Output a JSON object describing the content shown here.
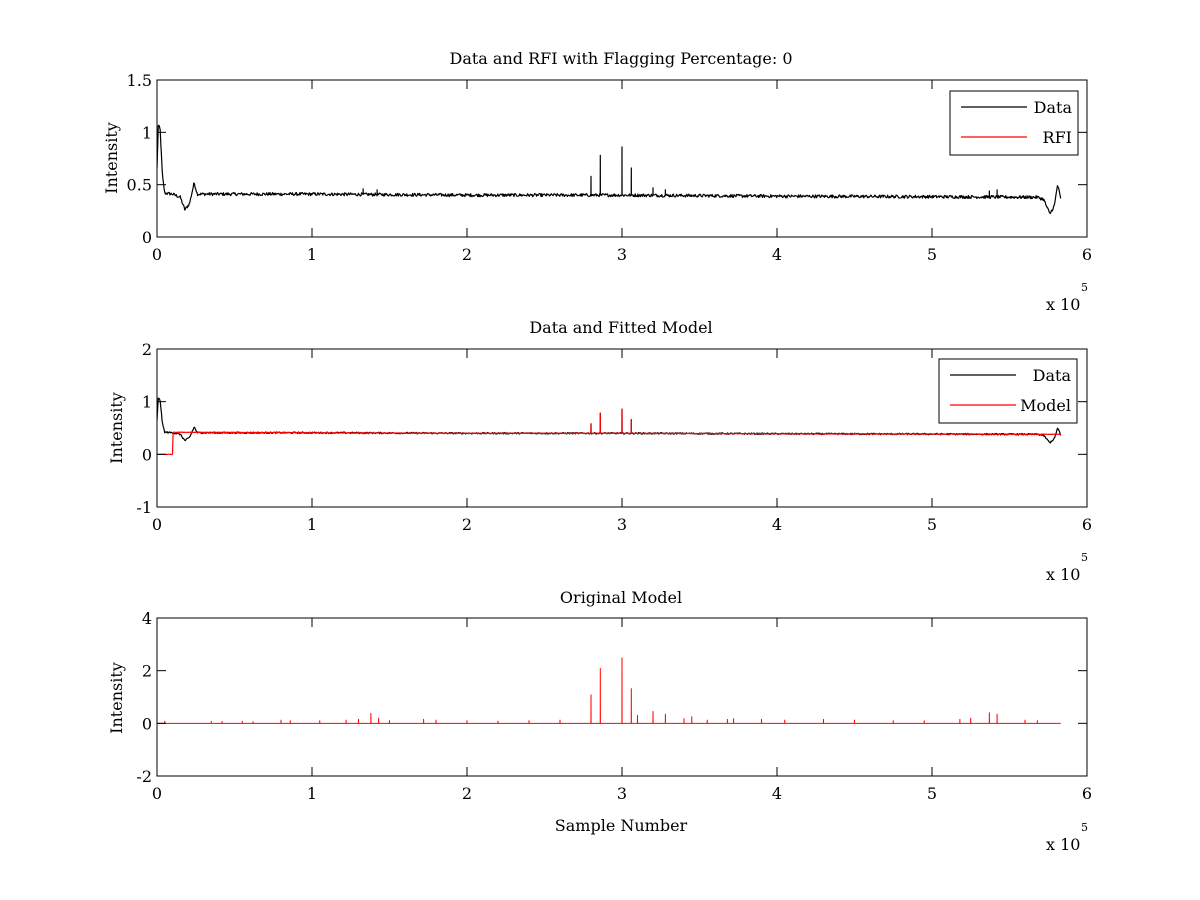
{
  "chart_data": [
    {
      "type": "line",
      "title": "Data and RFI with Flagging Percentage: 0",
      "xlabel": "",
      "ylabel": "Intensity",
      "xlim": [
        0,
        6
      ],
      "ylim": [
        0,
        1.5
      ],
      "x_ticks": [
        "0",
        "1",
        "2",
        "3",
        "4",
        "5",
        "6"
      ],
      "y_ticks": [
        "0",
        "0.5",
        "1",
        "1.5"
      ],
      "x_multiplier": {
        "base": "x 10",
        "exponent": "5"
      },
      "legend": {
        "position": "top-right",
        "entries": [
          "Data",
          "RFI"
        ]
      },
      "grid": false,
      "series": [
        {
          "name": "Data",
          "color": "#000000",
          "baseline": [
            [
              0.0,
              0.65
            ],
            [
              0.008,
              1.06
            ],
            [
              0.02,
              1.04
            ],
            [
              0.035,
              0.58
            ],
            [
              0.05,
              0.42
            ],
            [
              0.1,
              0.41
            ],
            [
              0.15,
              0.38
            ],
            [
              0.18,
              0.26
            ],
            [
              0.21,
              0.32
            ],
            [
              0.24,
              0.52
            ],
            [
              0.26,
              0.41
            ],
            [
              1.0,
              0.41
            ],
            [
              2.0,
              0.4
            ],
            [
              3.0,
              0.4
            ],
            [
              4.0,
              0.39
            ],
            [
              5.0,
              0.385
            ],
            [
              5.68,
              0.38
            ],
            [
              5.72,
              0.36
            ],
            [
              5.76,
              0.22
            ],
            [
              5.79,
              0.3
            ],
            [
              5.81,
              0.5
            ],
            [
              5.82,
              0.44
            ],
            [
              5.83,
              0.36
            ]
          ],
          "spikes": [
            [
              1.33,
              0.46
            ],
            [
              1.42,
              0.45
            ],
            [
              2.8,
              0.58
            ],
            [
              2.86,
              0.78
            ],
            [
              3.0,
              0.86
            ],
            [
              3.06,
              0.66
            ],
            [
              3.2,
              0.47
            ],
            [
              3.28,
              0.45
            ],
            [
              5.37,
              0.44
            ],
            [
              5.42,
              0.45
            ]
          ],
          "noise": 0.015
        },
        {
          "name": "RFI",
          "color": "#ff0000",
          "points": []
        }
      ]
    },
    {
      "type": "line",
      "title": "Data and Fitted Model",
      "xlabel": "",
      "ylabel": "Intensity",
      "xlim": [
        0,
        6
      ],
      "ylim": [
        -1,
        2
      ],
      "x_ticks": [
        "0",
        "1",
        "2",
        "3",
        "4",
        "5",
        "6"
      ],
      "y_ticks": [
        "-1",
        "0",
        "1",
        "2"
      ],
      "x_multiplier": {
        "base": "x 10",
        "exponent": "5"
      },
      "legend": {
        "position": "top-right",
        "entries": [
          "Data",
          "Model"
        ]
      },
      "grid": false,
      "series": [
        {
          "name": "Data",
          "color": "#000000",
          "baseline": [
            [
              0.0,
              0.65
            ],
            [
              0.008,
              1.06
            ],
            [
              0.02,
              1.04
            ],
            [
              0.035,
              0.58
            ],
            [
              0.05,
              0.42
            ],
            [
              0.1,
              0.41
            ],
            [
              0.15,
              0.38
            ],
            [
              0.18,
              0.26
            ],
            [
              0.21,
              0.32
            ],
            [
              0.24,
              0.52
            ],
            [
              0.26,
              0.41
            ],
            [
              1.0,
              0.41
            ],
            [
              2.0,
              0.4
            ],
            [
              3.0,
              0.4
            ],
            [
              4.0,
              0.39
            ],
            [
              5.0,
              0.385
            ],
            [
              5.68,
              0.38
            ],
            [
              5.72,
              0.36
            ],
            [
              5.76,
              0.22
            ],
            [
              5.79,
              0.3
            ],
            [
              5.81,
              0.5
            ],
            [
              5.82,
              0.44
            ],
            [
              5.83,
              0.36
            ]
          ],
          "spikes": [
            [
              2.8,
              0.58
            ],
            [
              2.86,
              0.78
            ],
            [
              3.0,
              0.86
            ],
            [
              3.06,
              0.66
            ]
          ],
          "noise": 0.015
        },
        {
          "name": "Model",
          "color": "#ff0000",
          "baseline": [
            [
              0.0,
              0.0
            ],
            [
              0.1,
              0.0
            ],
            [
              0.1,
              0.42
            ],
            [
              1.0,
              0.41
            ],
            [
              2.0,
              0.4
            ],
            [
              3.0,
              0.4
            ],
            [
              4.0,
              0.39
            ],
            [
              5.0,
              0.385
            ],
            [
              5.83,
              0.38
            ]
          ],
          "spikes": [
            [
              2.8,
              0.58
            ],
            [
              2.86,
              0.78
            ],
            [
              3.0,
              0.86
            ],
            [
              3.06,
              0.66
            ]
          ],
          "noise": 0.004
        }
      ]
    },
    {
      "type": "line",
      "title": "Original Model",
      "xlabel": "Sample Number",
      "ylabel": "Intensity",
      "xlim": [
        0,
        6
      ],
      "ylim": [
        -2,
        4
      ],
      "x_ticks": [
        "0",
        "1",
        "2",
        "3",
        "4",
        "5",
        "6"
      ],
      "y_ticks": [
        "-2",
        "0",
        "2",
        "4"
      ],
      "x_multiplier": {
        "base": "x 10",
        "exponent": "5"
      },
      "legend": null,
      "grid": false,
      "series": [
        {
          "name": "",
          "color": "#ff0000",
          "baseline": [
            [
              0.0,
              0.0
            ],
            [
              5.83,
              0.0
            ]
          ],
          "spikes": [
            [
              0.05,
              0.08
            ],
            [
              0.35,
              0.08
            ],
            [
              0.42,
              0.07
            ],
            [
              0.55,
              0.08
            ],
            [
              0.62,
              0.06
            ],
            [
              0.8,
              0.12
            ],
            [
              0.86,
              0.1
            ],
            [
              1.05,
              0.1
            ],
            [
              1.22,
              0.12
            ],
            [
              1.3,
              0.15
            ],
            [
              1.38,
              0.38
            ],
            [
              1.43,
              0.2
            ],
            [
              1.5,
              0.1
            ],
            [
              1.72,
              0.15
            ],
            [
              1.8,
              0.12
            ],
            [
              2.0,
              0.1
            ],
            [
              2.2,
              0.08
            ],
            [
              2.4,
              0.1
            ],
            [
              2.6,
              0.12
            ],
            [
              2.8,
              1.08
            ],
            [
              2.86,
              2.08
            ],
            [
              3.0,
              2.48
            ],
            [
              3.06,
              1.32
            ],
            [
              3.1,
              0.3
            ],
            [
              3.2,
              0.45
            ],
            [
              3.28,
              0.35
            ],
            [
              3.4,
              0.18
            ],
            [
              3.45,
              0.25
            ],
            [
              3.55,
              0.12
            ],
            [
              3.68,
              0.15
            ],
            [
              3.72,
              0.18
            ],
            [
              3.9,
              0.15
            ],
            [
              4.05,
              0.12
            ],
            [
              4.3,
              0.15
            ],
            [
              4.5,
              0.12
            ],
            [
              4.75,
              0.1
            ],
            [
              4.95,
              0.1
            ],
            [
              5.18,
              0.15
            ],
            [
              5.25,
              0.2
            ],
            [
              5.37,
              0.4
            ],
            [
              5.42,
              0.35
            ],
            [
              5.6,
              0.12
            ],
            [
              5.68,
              0.1
            ]
          ],
          "noise": 0.0
        }
      ]
    }
  ]
}
